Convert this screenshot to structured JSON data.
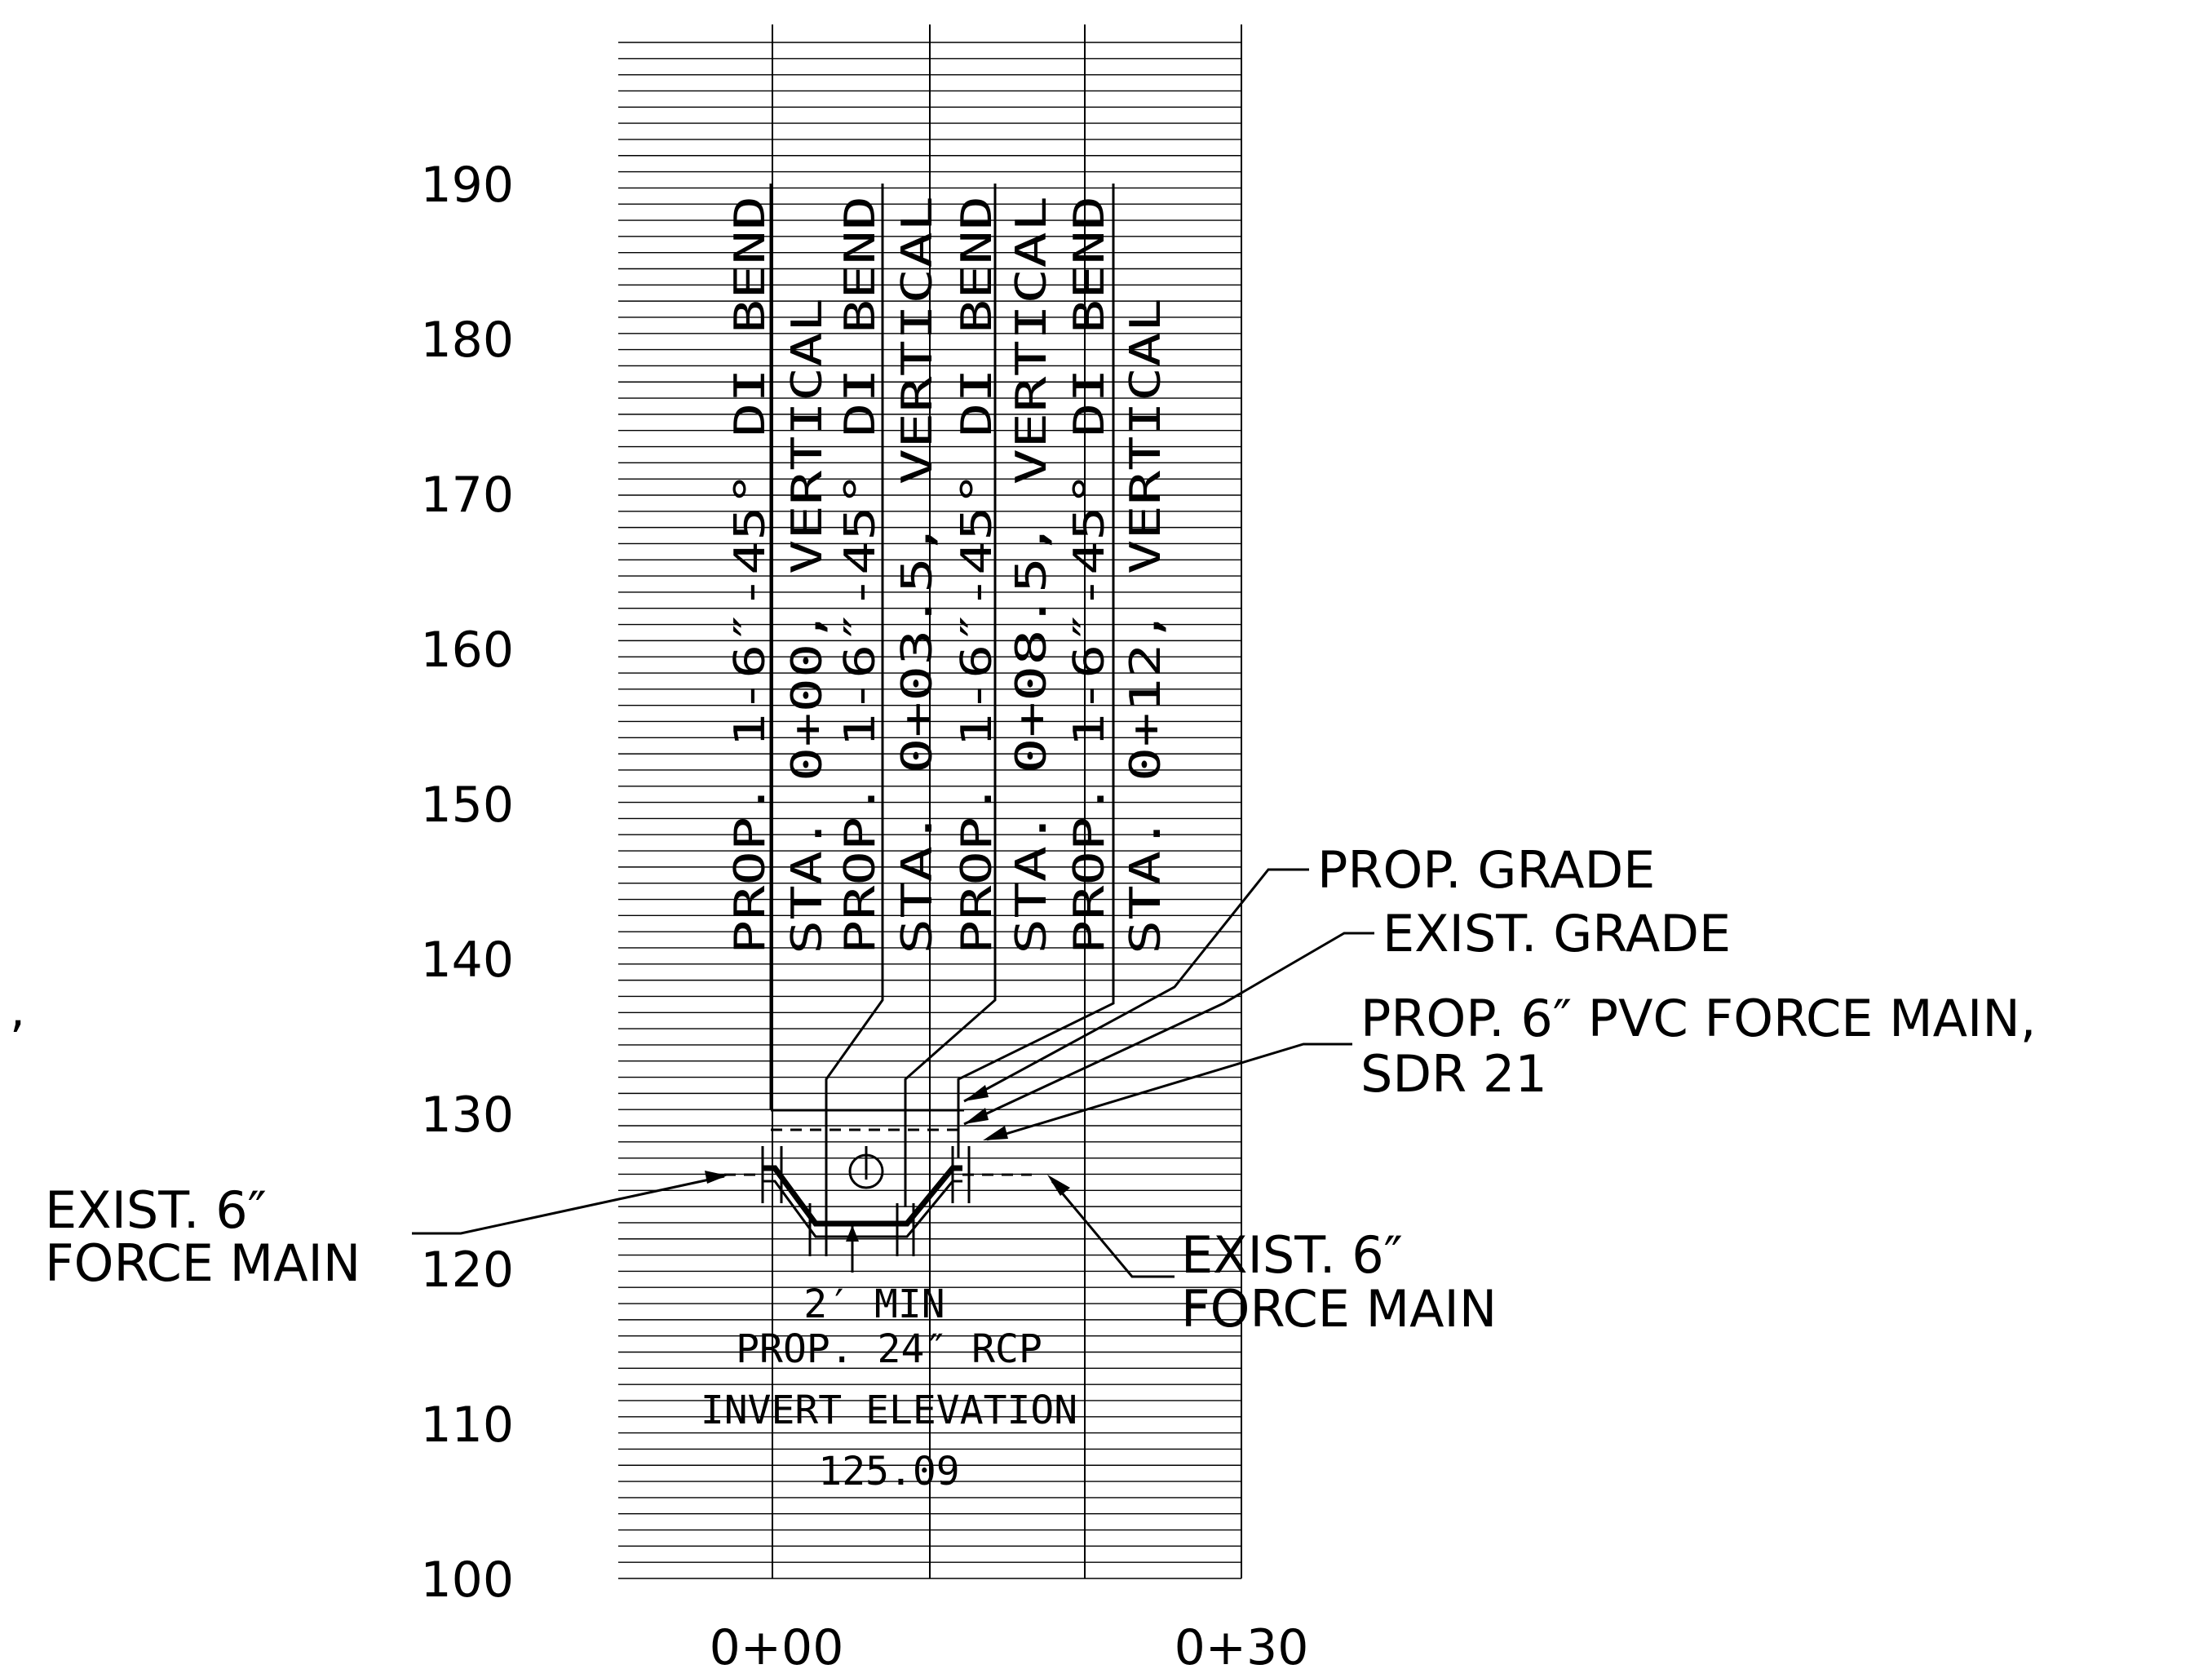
{
  "elevation_labels": [
    "190",
    "180",
    "170",
    "160",
    "150",
    "140",
    "130",
    "120",
    "110",
    "100"
  ],
  "station_labels": [
    "0+00",
    "0+30"
  ],
  "stray_mark": ",",
  "vertical_callouts": [
    "PROP. 1-6″-45° DI BEND",
    "STA. 0+00, VERTICAL",
    "PROP. 1-6″-45° DI BEND",
    "STA. 0+03.5, VERTICAL",
    "PROP. 1-6″-45° DI BEND",
    "STA. 0+08.5, VERTICAL",
    "PROP. 1-6″-45° DI BEND",
    "STA. 0+12, VERTICAL"
  ],
  "labels": {
    "prop_grade": "PROP. GRADE",
    "exist_grade": "EXIST. GRADE",
    "force_main_line1": "PROP. 6″ PVC FORCE MAIN,",
    "force_main_line2": "SDR 21",
    "exist_left_line1": "EXIST. 6″",
    "exist_left_line2": "FORCE MAIN",
    "exist_right_line1": "EXIST. 6″",
    "exist_right_line2": "FORCE MAIN",
    "min_clearance": "2′ MIN",
    "rcp_line1": "PROP. 24″ RCP",
    "rcp_line2": "INVERT ELEVATION",
    "rcp_line3": "125.09"
  }
}
